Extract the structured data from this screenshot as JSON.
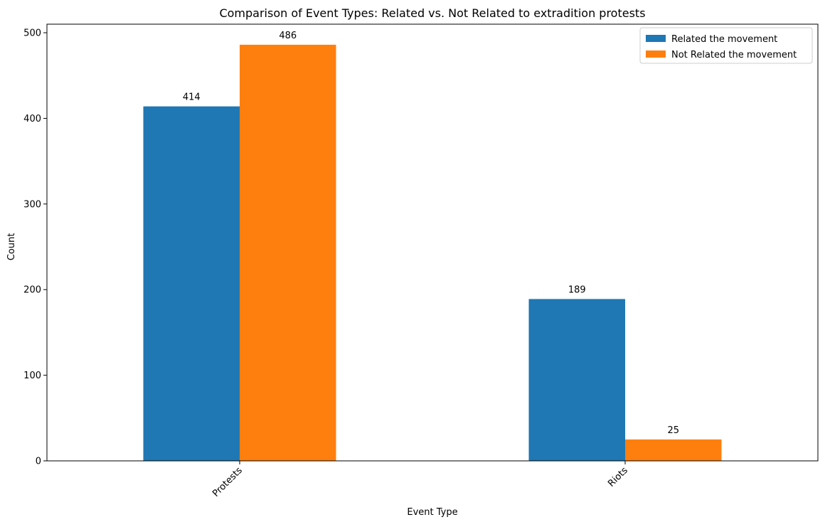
{
  "chart_data": {
    "type": "bar",
    "title": "Comparison of Event Types: Related vs. Not Related to extradition protests",
    "xlabel": "Event Type",
    "ylabel": "Count",
    "categories": [
      "Protests",
      "Riots"
    ],
    "series": [
      {
        "name": "Related the movement",
        "values": [
          414,
          189
        ],
        "color": "#1f77b4"
      },
      {
        "name": "Not Related the movement",
        "values": [
          486,
          25
        ],
        "color": "#ff7f0e"
      }
    ],
    "ylim": [
      0,
      510
    ],
    "yticks": [
      0,
      100,
      200,
      300,
      400,
      500
    ],
    "legend_position": "top-right",
    "grid": false,
    "xtick_rotation": 45
  }
}
